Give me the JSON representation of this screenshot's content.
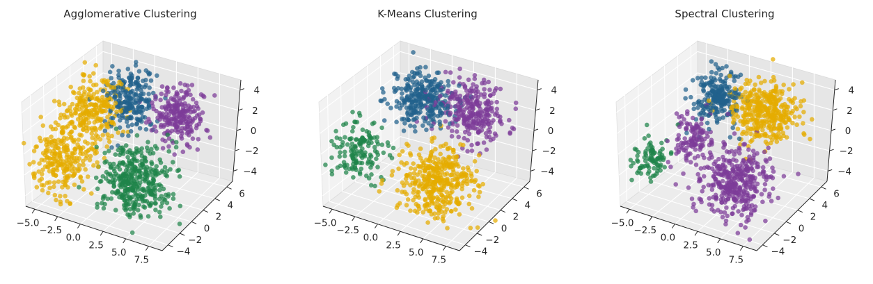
{
  "colors": {
    "blue": "#21618c",
    "purple": "#7d3c98",
    "yellow": "#e5ac00",
    "green": "#1e8449",
    "pane_left": "#f2f2f2",
    "pane_right": "#e6e6e6",
    "pane_floor": "#ececec"
  },
  "chart_data": [
    {
      "type": "scatter3d",
      "title": "Agglomerative Clustering",
      "x_ticks": [
        "−5.0",
        "−2.5",
        "0.0",
        "2.5",
        "5.0",
        "7.5"
      ],
      "y_ticks": [
        "−4",
        "−2",
        "0",
        "2",
        "4",
        "6"
      ],
      "z_ticks": [
        "−4",
        "−2",
        "0",
        "2",
        "4"
      ],
      "xlim": [
        -6,
        9
      ],
      "ylim": [
        -5,
        7
      ],
      "zlim": [
        -5,
        5
      ],
      "grid": true,
      "series": [
        {
          "color": "yellow",
          "clusters": [
            {
              "x": -3.5,
              "y": 2.0,
              "z": 1.5,
              "n": 260,
              "s": [
                1.3,
                1.6,
                1.5
              ]
            },
            {
              "x": -4.5,
              "y": -1.0,
              "z": -2.0,
              "n": 240,
              "s": [
                1.3,
                1.6,
                1.5
              ]
            }
          ]
        },
        {
          "color": "blue",
          "clusters": [
            {
              "x": -1.0,
              "y": 4.5,
              "z": 2.0,
              "n": 230,
              "s": [
                1.2,
                1.1,
                1.2
              ]
            }
          ]
        },
        {
          "color": "purple",
          "clusters": [
            {
              "x": 3.5,
              "y": 5.5,
              "z": 1.5,
              "n": 230,
              "s": [
                1.4,
                1.2,
                1.3
              ]
            }
          ]
        },
        {
          "color": "green",
          "clusters": [
            {
              "x": 2.5,
              "y": 0.0,
              "z": -2.5,
              "n": 380,
              "s": [
                1.6,
                1.4,
                1.5
              ]
            }
          ]
        }
      ]
    },
    {
      "type": "scatter3d",
      "title": "K-Means Clustering",
      "x_ticks": [
        "−5.0",
        "−2.5",
        "0.0",
        "2.5",
        "5.0",
        "7.5"
      ],
      "y_ticks": [
        "−4",
        "−2",
        "0",
        "2",
        "4",
        "6"
      ],
      "z_ticks": [
        "−4",
        "−2",
        "0",
        "2",
        "4"
      ],
      "xlim": [
        -6,
        9
      ],
      "ylim": [
        -5,
        7
      ],
      "zlim": [
        -5,
        5
      ],
      "grid": true,
      "series": [
        {
          "color": "green",
          "clusters": [
            {
              "x": -5.0,
              "y": -0.5,
              "z": -1.5,
              "n": 150,
              "s": [
                1.2,
                1.2,
                1.2
              ]
            }
          ]
        },
        {
          "color": "blue",
          "clusters": [
            {
              "x": -1.5,
              "y": 4.5,
              "z": 2.0,
              "n": 300,
              "s": [
                1.4,
                1.2,
                1.2
              ]
            }
          ]
        },
        {
          "color": "purple",
          "clusters": [
            {
              "x": 3.0,
              "y": 5.5,
              "z": 1.5,
              "n": 280,
              "s": [
                1.6,
                1.3,
                1.3
              ]
            }
          ]
        },
        {
          "color": "yellow",
          "clusters": [
            {
              "x": 3.0,
              "y": 0.0,
              "z": -2.5,
              "n": 400,
              "s": [
                1.7,
                1.5,
                1.5
              ]
            }
          ]
        }
      ]
    },
    {
      "type": "scatter3d",
      "title": "Spectral Clustering",
      "x_ticks": [
        "−5.0",
        "−2.5",
        "0.0",
        "2.5",
        "5.0",
        "7.5"
      ],
      "y_ticks": [
        "−4",
        "−2",
        "0",
        "2",
        "4",
        "6"
      ],
      "z_ticks": [
        "−4",
        "−2",
        "0",
        "2",
        "4"
      ],
      "xlim": [
        -6,
        9
      ],
      "ylim": [
        -5,
        7
      ],
      "zlim": [
        -5,
        5
      ],
      "grid": true,
      "series": [
        {
          "color": "green",
          "clusters": [
            {
              "x": -5.5,
              "y": -1.0,
              "z": -2.0,
              "n": 90,
              "s": [
                0.9,
                1.0,
                1.0
              ]
            }
          ]
        },
        {
          "color": "blue",
          "clusters": [
            {
              "x": -2.0,
              "y": 4.5,
              "z": 2.0,
              "n": 230,
              "s": [
                1.1,
                1.1,
                1.1
              ]
            }
          ]
        },
        {
          "color": "yellow",
          "clusters": [
            {
              "x": 2.5,
              "y": 5.5,
              "z": 1.5,
              "n": 380,
              "s": [
                1.6,
                1.3,
                1.3
              ]
            }
          ]
        },
        {
          "color": "purple",
          "clusters": [
            {
              "x": 3.0,
              "y": 0.0,
              "z": -2.5,
              "n": 380,
              "s": [
                1.7,
                1.5,
                1.5
              ]
            },
            {
              "x": -2.5,
              "y": 1.5,
              "z": -0.5,
              "n": 120,
              "s": [
                1.0,
                1.0,
                1.0
              ]
            }
          ]
        }
      ]
    }
  ]
}
